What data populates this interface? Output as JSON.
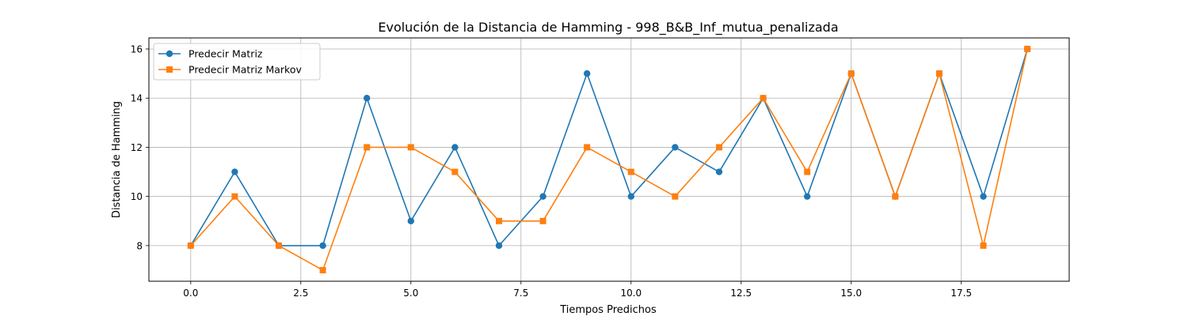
{
  "chart_data": {
    "type": "line",
    "title": "Evolución de la Distancia de Hamming - 998_B&B_Inf_mutua_penalizada",
    "xlabel": "Tiempos Predichos",
    "ylabel": "Distancia de Hamming",
    "xlim": [
      -0.95,
      19.95
    ],
    "ylim": [
      6.55,
      16.45
    ],
    "xticks": [
      0.0,
      2.5,
      5.0,
      7.5,
      10.0,
      12.5,
      15.0,
      17.5
    ],
    "xtick_labels": [
      "0.0",
      "2.5",
      "5.0",
      "7.5",
      "10.0",
      "12.5",
      "15.0",
      "17.5"
    ],
    "yticks": [
      8,
      10,
      12,
      14,
      16
    ],
    "ytick_labels": [
      "8",
      "10",
      "12",
      "14",
      "16"
    ],
    "grid": true,
    "legend_position": "top-left",
    "x": [
      0,
      1,
      2,
      3,
      4,
      5,
      6,
      7,
      8,
      9,
      10,
      11,
      12,
      13,
      14,
      15,
      16,
      17,
      18,
      19
    ],
    "series": [
      {
        "name": "Predecir Matriz",
        "color": "#1f77b4",
        "marker": "circle",
        "values": [
          8,
          11,
          8,
          8,
          14,
          9,
          12,
          8,
          10,
          15,
          10,
          12,
          11,
          14,
          10,
          15,
          10,
          15,
          10,
          16
        ]
      },
      {
        "name": "Predecir Matriz Markov",
        "color": "#ff7f0e",
        "marker": "square",
        "values": [
          8,
          10,
          8,
          7,
          12,
          12,
          11,
          9,
          9,
          12,
          11,
          10,
          12,
          14,
          11,
          15,
          10,
          15,
          8,
          16
        ]
      }
    ]
  }
}
